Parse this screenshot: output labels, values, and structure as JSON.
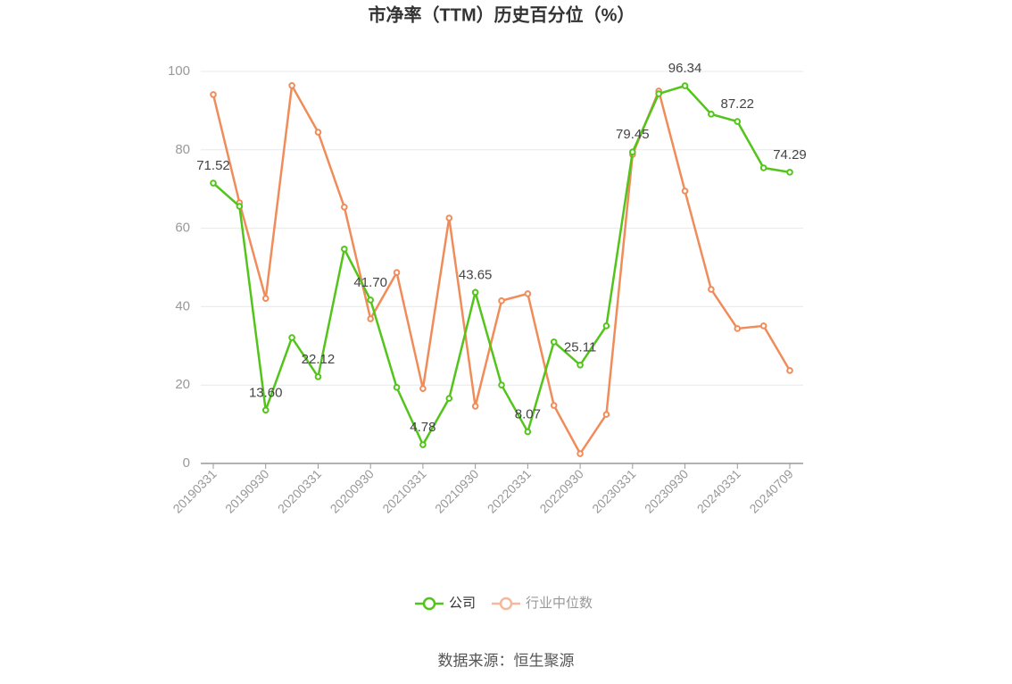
{
  "chart_data": {
    "type": "line",
    "title": "市净率（TTM）历史百分位（%）",
    "source": "数据来源：恒生聚源",
    "categories": [
      "20190331",
      null,
      "20190930",
      null,
      "20200331",
      null,
      "20200930",
      null,
      "20210331",
      null,
      "20210930",
      null,
      "20220331",
      null,
      "20220930",
      null,
      "20230331",
      null,
      "20230930",
      null,
      "20240331",
      null,
      "20240709"
    ],
    "series": [
      {
        "name": "公司",
        "color": "#52c41a",
        "values": [
          71.52,
          65.6,
          13.6,
          32.1,
          22.12,
          54.7,
          41.7,
          19.4,
          4.78,
          16.6,
          43.65,
          20.0,
          8.07,
          31.0,
          25.11,
          35.1,
          79.45,
          94.3,
          96.34,
          89.1,
          87.22,
          75.4,
          74.29
        ],
        "value_labels": [
          "71.52",
          null,
          "13.60",
          null,
          "22.12",
          null,
          "41.70",
          null,
          "4.78",
          null,
          "43.65",
          null,
          "8.07",
          null,
          "25.11",
          null,
          "79.45",
          null,
          "96.34",
          null,
          "87.22",
          null,
          "74.29"
        ]
      },
      {
        "name": "行业中位数",
        "color": "#f08c5a",
        "values": [
          94.1,
          66.5,
          42.1,
          96.4,
          84.5,
          65.4,
          36.9,
          48.7,
          19.1,
          62.6,
          14.6,
          41.5,
          43.3,
          14.8,
          2.5,
          12.5,
          78.8,
          95.0,
          69.5,
          44.4,
          34.4,
          35.1,
          23.7
        ]
      }
    ],
    "ylim": [
      0,
      100
    ],
    "yticks": [
      0,
      20,
      40,
      60,
      80,
      100
    ],
    "grid": true
  }
}
